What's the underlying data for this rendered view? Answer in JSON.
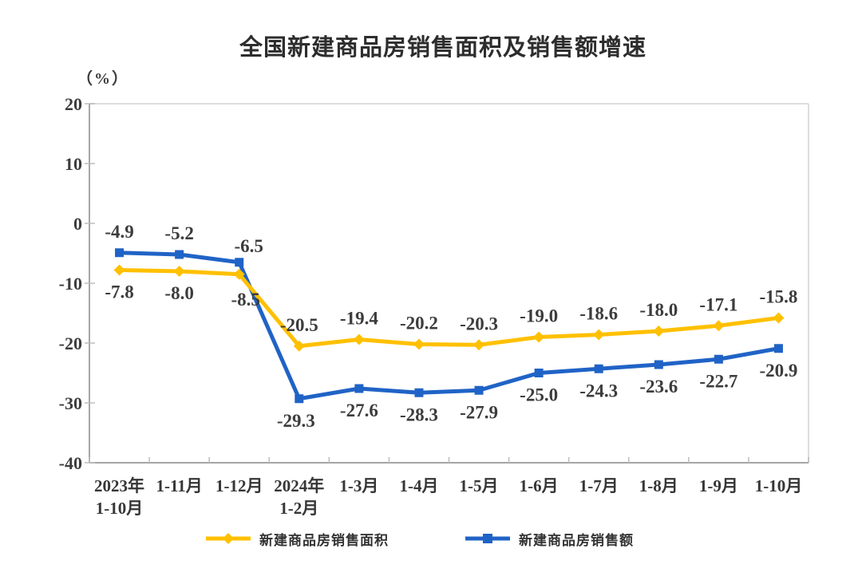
{
  "page": {
    "background": "#ffffff"
  },
  "chart_data": {
    "type": "line",
    "title": "全国新建商品房销售面积及销售额增速",
    "unit_label": "（%）",
    "categories": [
      [
        "2023年",
        "1-10月"
      ],
      [
        "1-11月"
      ],
      [
        "1-12月"
      ],
      [
        "2024年",
        "1-2月"
      ],
      [
        "1-3月"
      ],
      [
        "1-4月"
      ],
      [
        "1-5月"
      ],
      [
        "1-6月"
      ],
      [
        "1-7月"
      ],
      [
        "1-8月"
      ],
      [
        "1-9月"
      ],
      [
        "1-10月"
      ]
    ],
    "ylim": [
      -40,
      20
    ],
    "yticks": [
      20,
      10,
      0,
      -10,
      -20,
      -30,
      -40
    ],
    "grid": false,
    "legend_position": "bottom",
    "axis_colors": {
      "axis": "#a6a6a6",
      "border": "#dcdcdc",
      "tick": "#bdbdbd"
    },
    "series": [
      {
        "name": "新建商品房销售面积",
        "color": "#FFC000",
        "marker": "diamond",
        "values": [
          -7.8,
          -8.0,
          -8.5,
          -20.5,
          -19.4,
          -20.2,
          -20.3,
          -19.0,
          -18.6,
          -18.0,
          -17.1,
          -15.8
        ]
      },
      {
        "name": "新建商品房销售额",
        "color": "#2063C6",
        "marker": "square",
        "values": [
          -4.9,
          -5.2,
          -6.5,
          -29.3,
          -27.6,
          -28.3,
          -27.9,
          -25.0,
          -24.3,
          -23.6,
          -22.7,
          -20.9
        ]
      }
    ]
  }
}
